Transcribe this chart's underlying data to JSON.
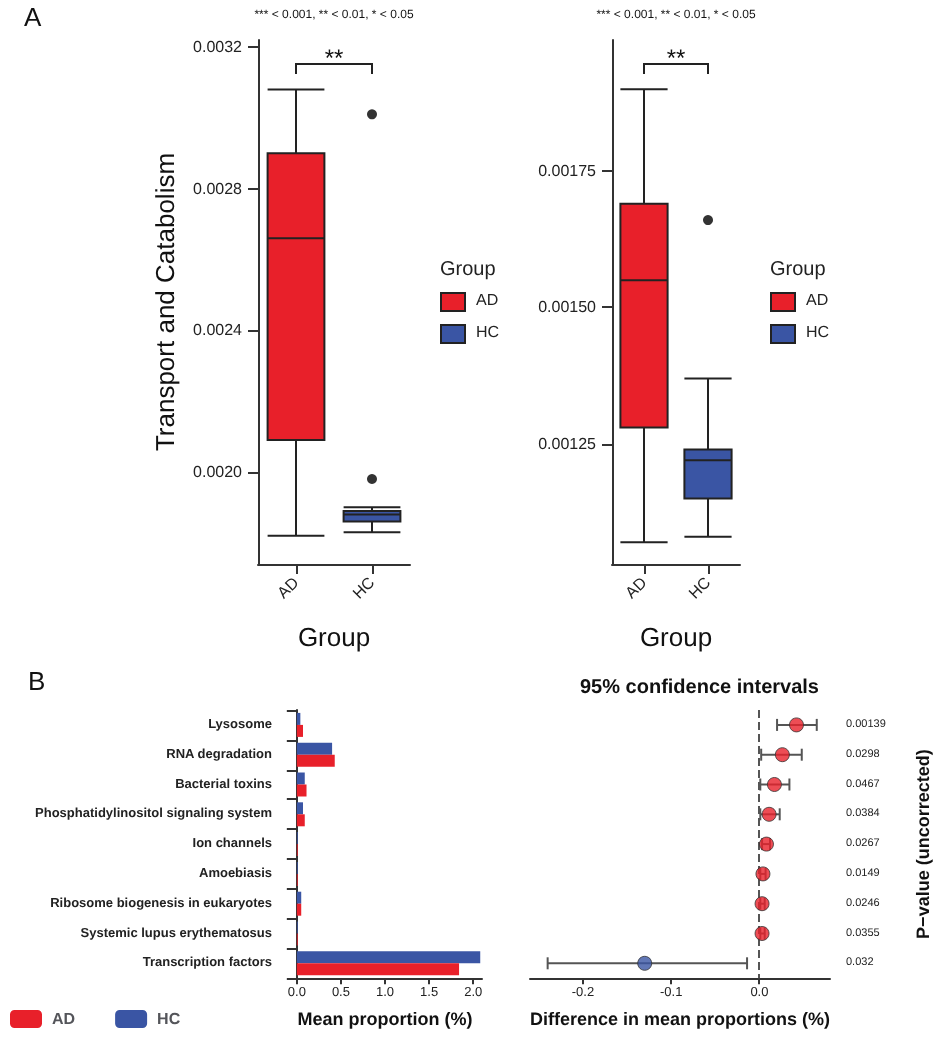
{
  "chart_data": [
    {
      "type": "box",
      "ylabel": "Transport and Catabolism",
      "xlabel": "Group",
      "legend_title": "Group",
      "legend": "right",
      "categories": [
        "AD",
        "HC"
      ],
      "annotations": [
        "A",
        "*** < 0.001, ** < 0.01, * < 0.05",
        "**"
      ],
      "ylim": [
        0.00174,
        0.00322
      ],
      "yticks": [
        {
          "value": 0.002,
          "label": "0.0020"
        },
        {
          "value": 0.0024,
          "label": "0.0024"
        },
        {
          "value": 0.0028,
          "label": "0.0028"
        },
        {
          "value": 0.0032,
          "label": "0.0032"
        }
      ],
      "series": [
        {
          "name": "AD",
          "color": "#e8202a",
          "boxes": [
            {
              "low": 0.00182,
              "q1": 0.00209,
              "median": 0.00266,
              "q3": 0.0029,
              "high": 0.00308
            },
            null
          ]
        },
        {
          "name": "HC",
          "color": "#3a55a4",
          "boxes": [
            null,
            {
              "low": 0.00183,
              "q1": 0.00186,
              "median": 0.00188,
              "q3": 0.00189,
              "high": 0.0019,
              "outliers": [
                0.00198,
                0.00301
              ]
            }
          ]
        }
      ]
    },
    {
      "type": "box",
      "xlabel": "Group",
      "legend_title": "Group",
      "legend": "right",
      "categories": [
        "AD",
        "HC"
      ],
      "annotations": [
        "*** < 0.001, ** < 0.01, * < 0.05",
        "**"
      ],
      "ylim": [
        0.00103,
        0.00199
      ],
      "yticks": [
        {
          "value": 0.00125,
          "label": "0.00125"
        },
        {
          "value": 0.0015,
          "label": "0.00150"
        },
        {
          "value": 0.00175,
          "label": "0.00175"
        }
      ],
      "series": [
        {
          "name": "AD",
          "color": "#e8202a",
          "boxes": [
            {
              "low": 0.00107,
              "q1": 0.00128,
              "median": 0.00155,
              "q3": 0.00169,
              "high": 0.0019
            },
            null
          ]
        },
        {
          "name": "HC",
          "color": "#3a55a4",
          "boxes": [
            null,
            {
              "low": 0.00108,
              "q1": 0.00115,
              "median": 0.00122,
              "q3": 0.00124,
              "high": 0.00137,
              "outliers": [
                0.00166
              ]
            }
          ]
        }
      ]
    },
    {
      "type": "bar",
      "orientation": "horizontal",
      "xlabel": "Mean proportion (%)",
      "legend": "bottom left",
      "annotations": [
        "B"
      ],
      "categories": [
        "Lysosome",
        "RNA degradation",
        "Bacterial toxins",
        "Phosphatidylinositol signaling system",
        "Ion channels",
        "Amoebiasis",
        "Ribosome biogenesis in eukaryotes",
        "Systemic lupus erythematosus",
        "Transcription factors"
      ],
      "xlim": [
        -0.1,
        2.1
      ],
      "xticks": [
        {
          "value": 0,
          "label": "0.0"
        },
        {
          "value": 0.5,
          "label": "0.5"
        },
        {
          "value": 1,
          "label": "1.0"
        },
        {
          "value": 1.5,
          "label": "1.5"
        },
        {
          "value": 2,
          "label": "2.0"
        }
      ],
      "series": [
        {
          "name": "AD",
          "color": "#e8202a",
          "values": [
            0.07,
            0.43,
            0.11,
            0.09,
            0.01,
            0.01,
            0.05,
            0.01,
            1.84
          ]
        },
        {
          "name": "HC",
          "color": "#3a55a4",
          "values": [
            0.04,
            0.4,
            0.09,
            0.07,
            0.01,
            0.01,
            0.05,
            0.01,
            2.08
          ]
        }
      ]
    },
    {
      "type": "scatter",
      "orientation": "horizontal",
      "title": "95% confidence intervals",
      "xlabel": "Difference in mean proportions (%)",
      "ylabel": "P−value (uncorrected)",
      "marker": "circle",
      "categories": [
        "0.00139",
        "0.0298",
        "0.0467",
        "0.0384",
        "0.0267",
        "0.0149",
        "0.0246",
        "0.0355",
        "0.032"
      ],
      "xlim": [
        -0.26,
        0.08
      ],
      "xticks": [
        {
          "value": -0.2,
          "label": "-0.2"
        },
        {
          "value": -0.1,
          "label": "-0.1"
        },
        {
          "value": 0,
          "label": "0.0"
        }
      ],
      "values": [
        0.042,
        0.026,
        0.017,
        0.011,
        0.008,
        0.004,
        0.003,
        0.003,
        -0.13
      ],
      "errors": [
        [
          0.02,
          0.065
        ],
        [
          0.002,
          0.048
        ],
        [
          0.001,
          0.034
        ],
        [
          0.001,
          0.023
        ],
        [
          0.003,
          0.012
        ],
        [
          0.001,
          0.007
        ],
        [
          0.001,
          0.006
        ],
        [
          0.001,
          0.006
        ],
        [
          -0.24,
          -0.014
        ]
      ],
      "colors": [
        "#e8202a",
        "#e8202a",
        "#e8202a",
        "#e8202a",
        "#e8202a",
        "#e8202a",
        "#e8202a",
        "#e8202a",
        "#3a55a4"
      ],
      "ref_lines": [
        {
          "axis": "x",
          "value": 0,
          "color": "#555555",
          "line_style": "dashed"
        }
      ]
    }
  ]
}
